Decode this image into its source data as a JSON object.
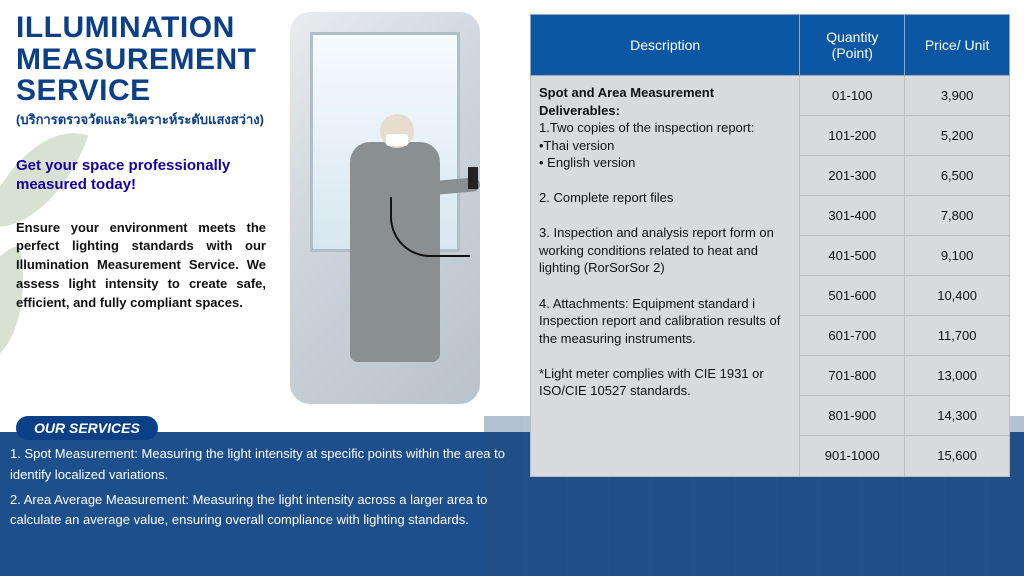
{
  "colors": {
    "brand_blue": "#0b3f86",
    "table_header": "#0b57a4",
    "table_cell_bg": "#d9dadb",
    "table_border": "#b9bfc4",
    "lower_band": "#1c4f8c",
    "tagline": "#17009e",
    "white": "#ffffff"
  },
  "typography": {
    "title_fontsize": 30,
    "title_weight": 900,
    "body_fontsize": 13,
    "tagline_fontsize": 15
  },
  "title": {
    "line1": "ILLUMINATION",
    "line2": "MEASUREMENT",
    "line3": "SERVICE",
    "thai": "(บริการตรวจวัดและวิเคราะห์ระดับแสงสว่าง)"
  },
  "tagline": "Get your space professionally measured today!",
  "body": "Ensure your environment meets the perfect lighting standards with our Illumination Measurement Service. We assess light intensity to create safe, efficient, and fully compliant spaces.",
  "services_header": "OUR SERVICES",
  "services": {
    "item1": "1. Spot Measurement: Measuring the light intensity at specific points within the area to identify localized variations.",
    "item2": "2. Area Average Measurement: Measuring the light intensity across a larger area to calculate an average value, ensuring overall compliance with lighting standards."
  },
  "table": {
    "headers": {
      "desc": "Description",
      "qty": "Quantity (Point)",
      "price": "Price/ Unit"
    },
    "description": {
      "title": "Spot and Area Measurement Deliverables:",
      "d1": "1.Two copies of the inspection report:",
      "d1a": "•Thai version",
      "d1b": "• English version",
      "d2": "2. Complete report files",
      "d3": "3. Inspection and analysis report form on working conditions related to heat and lighting (RorSorSor 2)",
      "d4": "4. Attachments: Equipment standard i Inspection report and calibration results of the measuring instruments.",
      "note": "*Light meter complies with CIE 1931 or ISO/CIE 10527 standards."
    },
    "rows": {
      "r0q": "01-100",
      "r0p": "3,900",
      "r1q": "101-200",
      "r1p": "5,200",
      "r2q": "201-300",
      "r2p": "6,500",
      "r3q": "301-400",
      "r3p": "7,800",
      "r4q": "401-500",
      "r4p": "9,100",
      "r5q": "501-600",
      "r5p": "10,400",
      "r6q": "601-700",
      "r6p": "11,700",
      "r7q": "701-800",
      "r7p": "13,000",
      "r8q": "801-900",
      "r8p": "14,300",
      "r9q": "901-1000",
      "r9p": "15,600"
    }
  }
}
